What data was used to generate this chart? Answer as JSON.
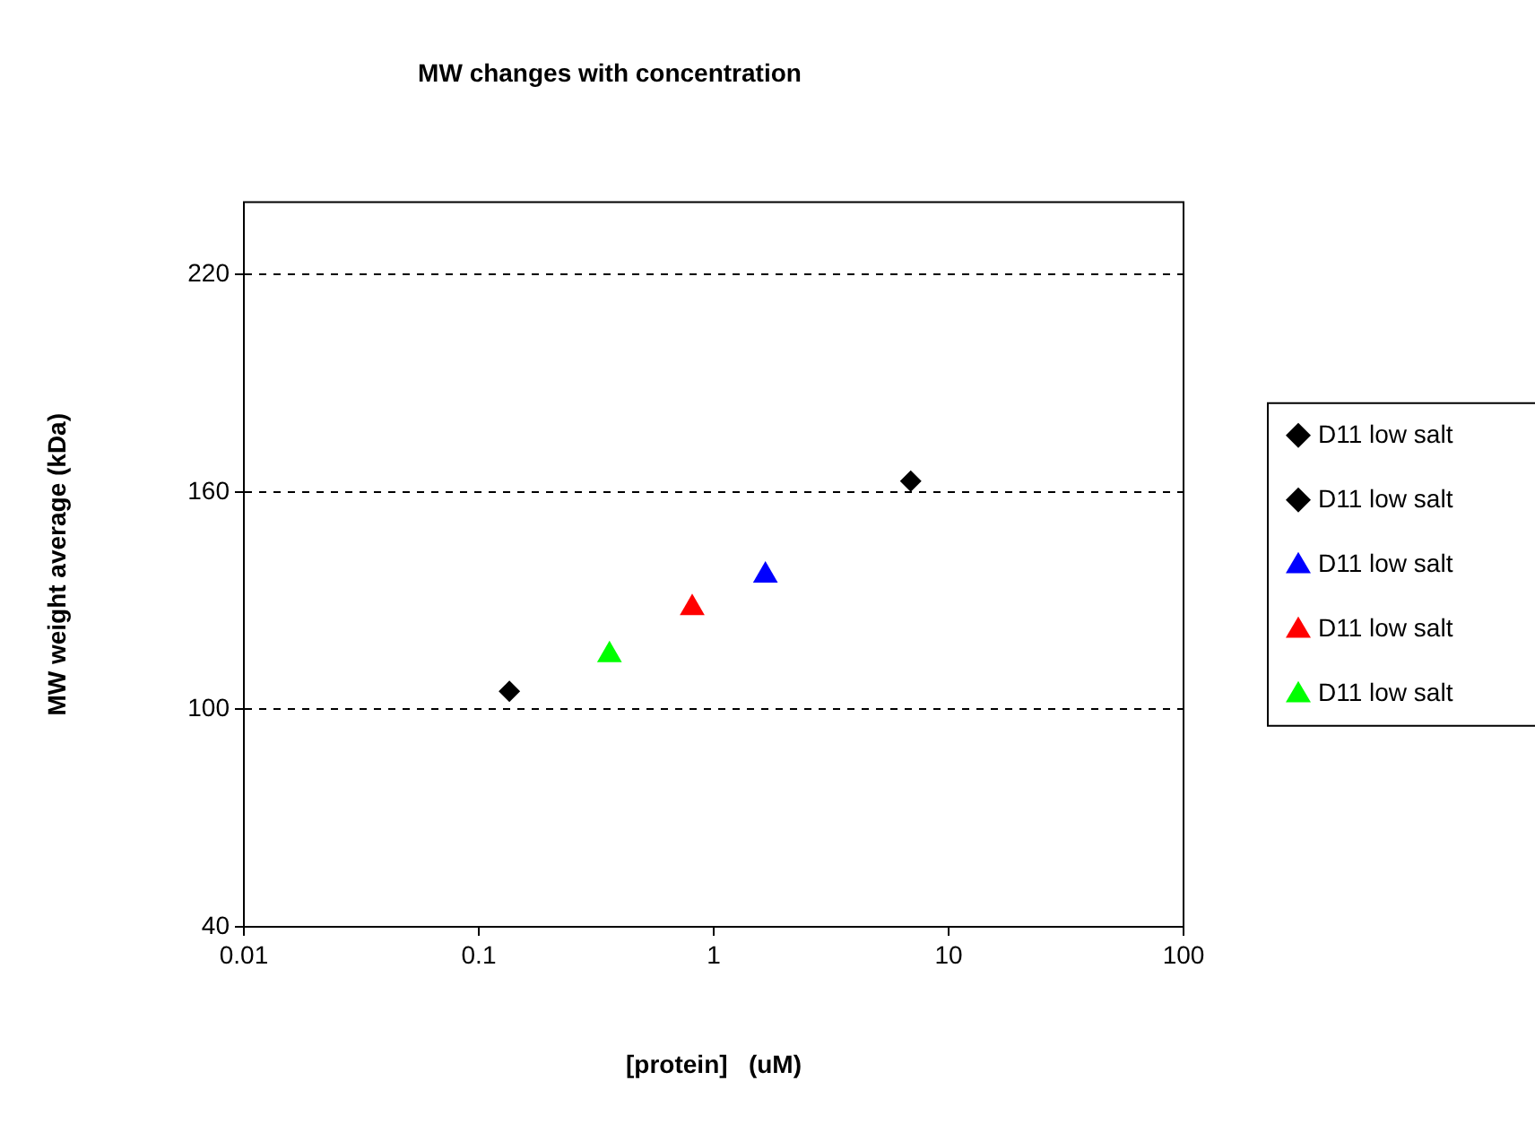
{
  "chart_data": {
    "type": "scatter",
    "title": "MW changes with concentration",
    "xlabel": "[protein]   (uM)",
    "ylabel": "MW weight average (kDa)",
    "log": "x",
    "xlim": [
      0.01,
      100
    ],
    "xticks": [
      0.01,
      0.1,
      1,
      10,
      100
    ],
    "ylim": [
      40,
      240
    ],
    "yticks": [
      40,
      100,
      160,
      220
    ],
    "grid": "y",
    "legend": "right",
    "series": [
      {
        "name": "D11 low salt",
        "color": "#000000",
        "marker": "diamond",
        "x": [
          0.135
        ],
        "values": [
          105
        ]
      },
      {
        "name": "D11 low salt",
        "color": "#000000",
        "marker": "diamond",
        "x": [
          6.9
        ],
        "values": [
          163
        ]
      },
      {
        "name": "D11 low salt",
        "color": "#0000ff",
        "marker": "triangle",
        "x": [
          1.66
        ],
        "values": [
          137
        ]
      },
      {
        "name": "D11 low salt",
        "color": "#ff0000",
        "marker": "triangle",
        "x": [
          0.81
        ],
        "values": [
          128
        ]
      },
      {
        "name": "D11 low salt",
        "color": "#00ff00",
        "marker": "triangle",
        "x": [
          0.36
        ],
        "values": [
          115
        ]
      }
    ]
  }
}
